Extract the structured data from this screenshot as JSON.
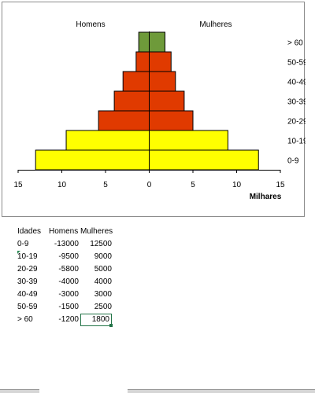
{
  "chart_data": {
    "type": "bar",
    "orientation": "horizontal",
    "categories": [
      "0-9",
      "10-19",
      "20-29",
      "30-39",
      "40-49",
      "50-59",
      "> 60"
    ],
    "series": [
      {
        "name": "Homens",
        "values": [
          -13000,
          -9500,
          -5800,
          -4000,
          -3000,
          -1500,
          -1200
        ]
      },
      {
        "name": "Mulheres",
        "values": [
          12500,
          9000,
          5000,
          4000,
          3000,
          2500,
          1800
        ]
      }
    ],
    "bar_colors": [
      "#ffff00",
      "#ffff00",
      "#e03a00",
      "#e03a00",
      "#e03a00",
      "#e03a00",
      "#6e9a3a"
    ],
    "group_labels": {
      "left": "Homens",
      "right": "Mulheres"
    },
    "xlabel": "Milhares",
    "xlim": [
      -15,
      15
    ],
    "xticks": [
      -15,
      -10,
      -5,
      0,
      5,
      10,
      15
    ],
    "xtick_labels": [
      "15",
      "10",
      "5",
      "0",
      "5",
      "10",
      "15"
    ],
    "x_scale_divisor": 1000,
    "grid": false,
    "legend": "none"
  },
  "table": {
    "headers": [
      "Idades",
      "Homens",
      "Mulheres"
    ],
    "rows": [
      [
        "0-9",
        "-13000",
        "12500"
      ],
      [
        "10-19",
        "-9500",
        "9000"
      ],
      [
        "20-29",
        "-5800",
        "5000"
      ],
      [
        "30-39",
        "-4000",
        "4000"
      ],
      [
        "40-49",
        "-3000",
        "3000"
      ],
      [
        "50-59",
        "-1500",
        "2500"
      ],
      [
        "> 60",
        "-1200",
        "1800"
      ]
    ]
  },
  "colors": {
    "bar_outline": "#000000",
    "selection": "#217346",
    "frame": "#8c8c8c"
  }
}
